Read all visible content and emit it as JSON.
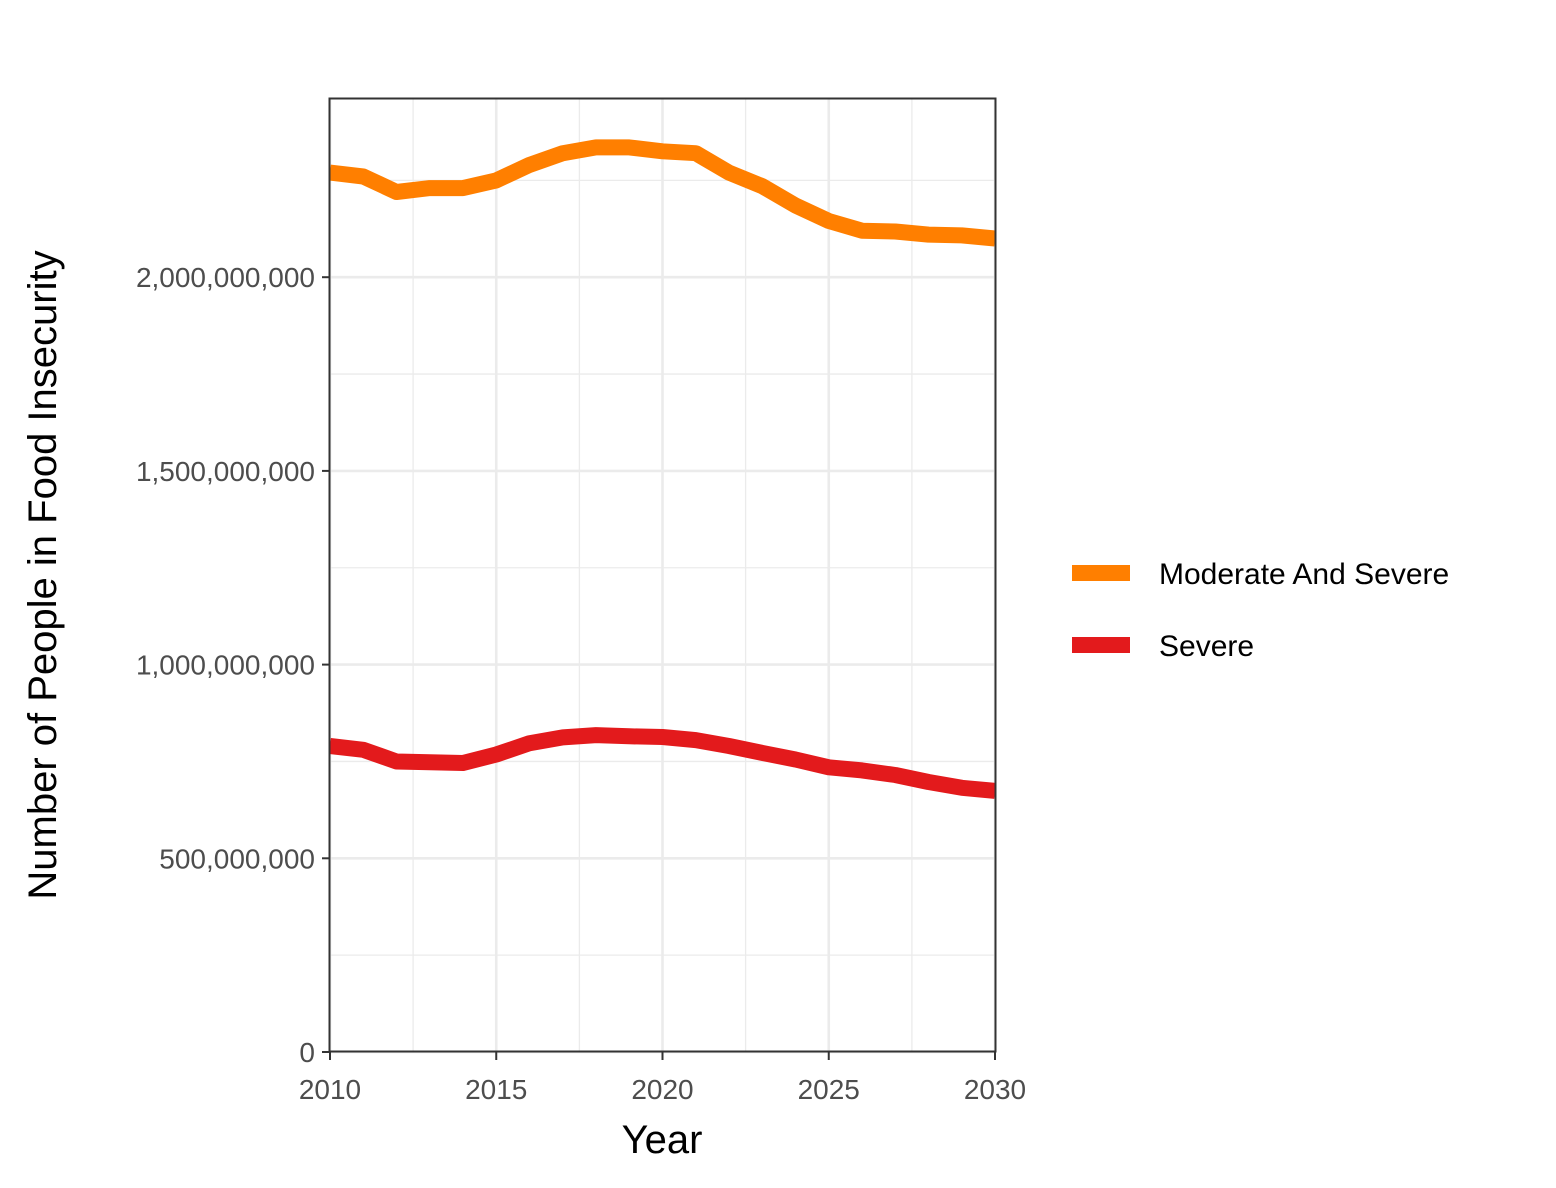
{
  "chart_data": {
    "type": "line",
    "title": "",
    "xlabel": "Year",
    "ylabel": "Number of People in Food Insecurity",
    "xlim": [
      2010,
      2030
    ],
    "ylim": [
      0,
      2460000000
    ],
    "x_ticks": [
      2010,
      2015,
      2020,
      2025,
      2030
    ],
    "x_tick_labels": [
      "2010",
      "2015",
      "2020",
      "2025",
      "2030"
    ],
    "y_ticks": [
      0,
      500000000,
      1000000000,
      1500000000,
      2000000000
    ],
    "y_tick_labels": [
      "0",
      "500,000,000",
      "1,000,000,000",
      "1,500,000,000",
      "2,000,000,000"
    ],
    "grid": true,
    "legend_position": "right",
    "x": [
      2010,
      2011,
      2012,
      2013,
      2014,
      2015,
      2016,
      2017,
      2018,
      2019,
      2020,
      2021,
      2022,
      2023,
      2024,
      2025,
      2026,
      2027,
      2028,
      2029,
      2030
    ],
    "series": [
      {
        "name": "Moderate And Severe",
        "color": "#ff7f00",
        "values": [
          2270000000,
          2260000000,
          2220000000,
          2230000000,
          2230000000,
          2250000000,
          2290000000,
          2320000000,
          2335000000,
          2335000000,
          2325000000,
          2320000000,
          2270000000,
          2235000000,
          2185000000,
          2145000000,
          2120000000,
          2118000000,
          2110000000,
          2108000000,
          2100000000
        ]
      },
      {
        "name": "Severe",
        "color": "#e31a1c",
        "values": [
          790000000,
          780000000,
          750000000,
          748000000,
          746000000,
          768000000,
          797000000,
          812000000,
          818000000,
          815000000,
          813000000,
          805000000,
          790000000,
          772000000,
          755000000,
          735000000,
          727000000,
          715000000,
          697000000,
          682000000,
          674000000
        ]
      }
    ]
  }
}
